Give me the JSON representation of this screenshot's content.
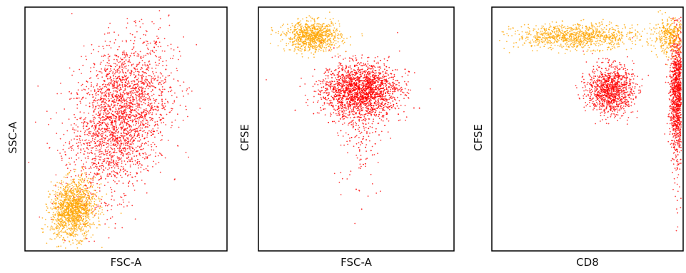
{
  "chart_data": [
    {
      "type": "scatter",
      "title": "",
      "xlabel": "FSC-A",
      "ylabel": "SSC-A",
      "xlim": [
        0,
        1
      ],
      "ylim": [
        0,
        1
      ],
      "colors": {
        "gated": "#ff0000",
        "reference": "#ffa500"
      },
      "clusters": [
        {
          "color": "gated",
          "n": 2600,
          "cx": 0.47,
          "cy": 0.55,
          "sx": 0.12,
          "sy": 0.16,
          "rho": 0.35
        },
        {
          "color": "reference",
          "n": 1400,
          "cx": 0.24,
          "cy": 0.17,
          "sx": 0.055,
          "sy": 0.06,
          "rho": 0.15
        }
      ]
    },
    {
      "type": "scatter",
      "title": "",
      "xlabel": "FSC-A",
      "ylabel": "CFSE",
      "xlim": [
        0,
        1
      ],
      "ylim": [
        0,
        1
      ],
      "colors": {
        "gated": "#ff0000",
        "reference": "#ffa500"
      },
      "clusters": [
        {
          "color": "gated",
          "n": 2400,
          "cx": 0.52,
          "cy": 0.66,
          "sx": 0.1,
          "sy": 0.055,
          "rho": 0.0,
          "tail": true
        },
        {
          "color": "reference",
          "n": 900,
          "cx": 0.28,
          "cy": 0.88,
          "sx": 0.07,
          "sy": 0.03,
          "rho": 0.0
        }
      ]
    },
    {
      "type": "scatter",
      "title": "",
      "xlabel": "CD8",
      "ylabel": "CFSE",
      "xlim": [
        0,
        1
      ],
      "ylim": [
        0,
        1
      ],
      "colors": {
        "gated": "#ff0000",
        "reference": "#ffa500"
      },
      "clusters": [
        {
          "color": "gated",
          "n": 1100,
          "cx": 0.62,
          "cy": 0.66,
          "sx": 0.06,
          "sy": 0.05,
          "rho": 0.0
        },
        {
          "color": "gated",
          "n": 1300,
          "cx": 0.97,
          "cy": 0.66,
          "sx": 0.02,
          "sy": 0.12,
          "rho": 0.0,
          "tail": true
        },
        {
          "color": "reference",
          "n": 1000,
          "cx": 0.45,
          "cy": 0.88,
          "sx": 0.16,
          "sy": 0.025,
          "rho": 0.0
        },
        {
          "color": "reference",
          "n": 350,
          "cx": 0.93,
          "cy": 0.88,
          "sx": 0.04,
          "sy": 0.035,
          "rho": 0.0
        }
      ]
    }
  ]
}
